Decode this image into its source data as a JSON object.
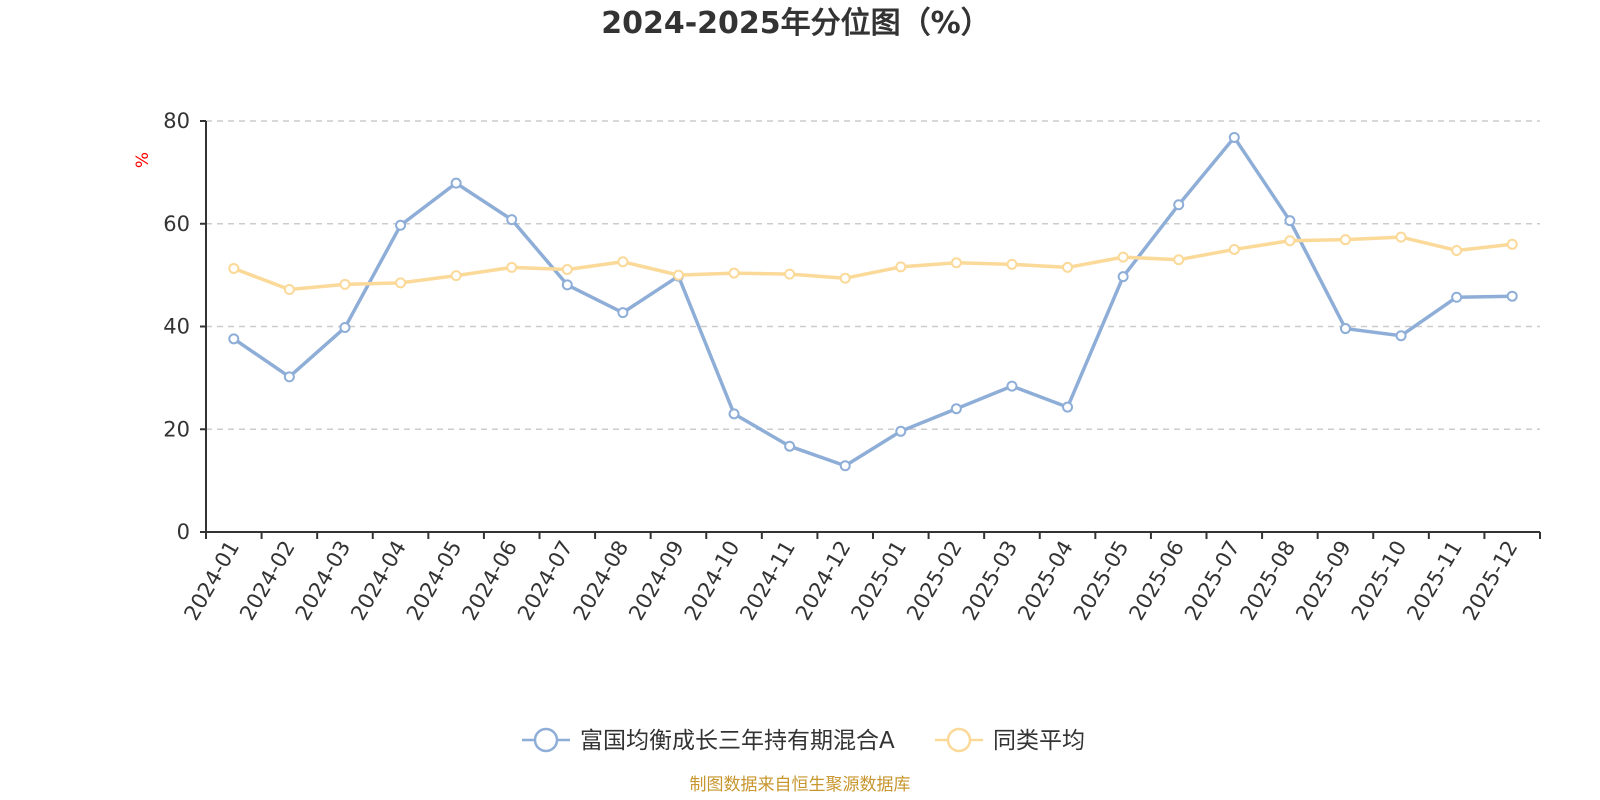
{
  "chart_data": {
    "type": "line",
    "title": "2024-2025年分位图（%）",
    "ylabel": "%",
    "xlabel": "",
    "ylim": [
      0,
      80
    ],
    "yticks": [
      0,
      20,
      40,
      60,
      80
    ],
    "grid": true,
    "legend_position": "bottom",
    "categories": [
      "2024-01",
      "2024-02",
      "2024-03",
      "2024-04",
      "2024-05",
      "2024-06",
      "2024-07",
      "2024-08",
      "2024-09",
      "2024-10",
      "2024-11",
      "2024-12",
      "2025-01",
      "2025-02",
      "2025-03",
      "2025-04",
      "2025-05",
      "2025-06",
      "2025-07",
      "2025-08",
      "2025-09",
      "2025-10",
      "2025-11",
      "2025-12"
    ],
    "series": [
      {
        "name": "富国均衡成长三年持有期混合A",
        "color": "#8eaed8",
        "values": [
          37.6,
          30.2,
          39.8,
          59.7,
          67.9,
          60.8,
          48.1,
          42.7,
          49.8,
          23.0,
          16.7,
          12.9,
          19.6,
          24.0,
          28.4,
          24.3,
          49.7,
          63.7,
          76.8,
          60.6,
          39.6,
          38.2,
          45.7,
          45.9
        ]
      },
      {
        "name": "同类平均",
        "color": "#fbd999",
        "values": [
          51.3,
          47.2,
          48.2,
          48.5,
          49.9,
          51.5,
          51.1,
          52.6,
          50.0,
          50.4,
          50.2,
          49.4,
          51.6,
          52.4,
          52.1,
          51.5,
          53.5,
          53.0,
          55.0,
          56.7,
          56.9,
          57.4,
          54.8,
          56.0
        ]
      }
    ],
    "source": "制图数据来自恒生聚源数据库"
  }
}
